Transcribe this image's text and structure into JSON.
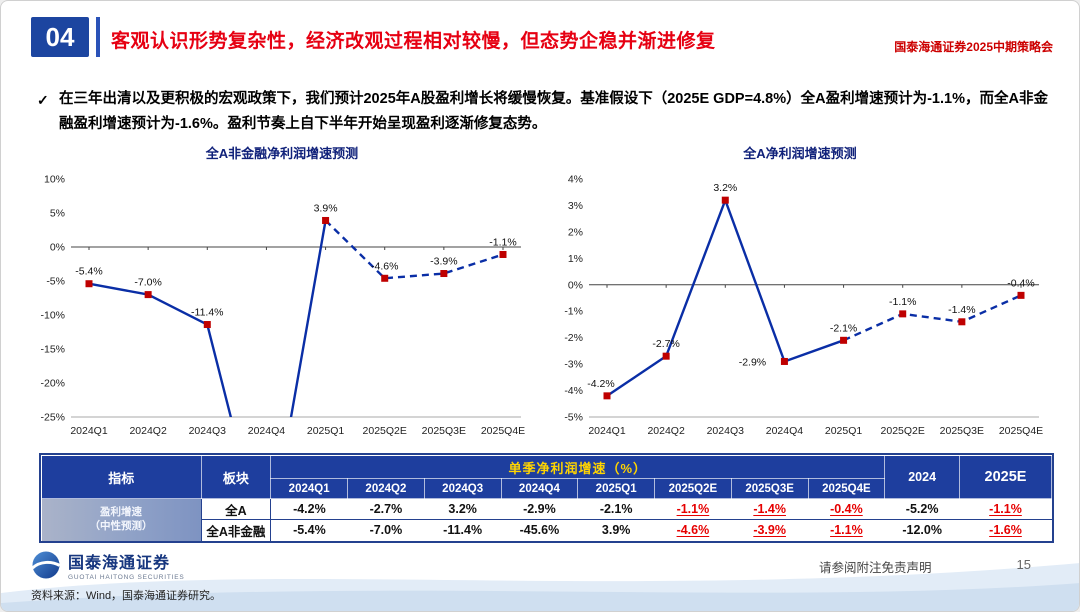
{
  "slide": {
    "badge": "04",
    "title": "客观认识形势复杂性，经济改观过程相对较慢，但态势企稳并渐进修复",
    "event": "国泰海通证券2025中期策略会"
  },
  "summary": {
    "bullet": "✓",
    "text": "在三年出清以及更积极的宏观政策下，我们预计2025年A股盈利增长将缓慢恢复。基准假设下（2025E GDP=4.8%）全A盈利增速预计为-1.1%，而全A非金融盈利增速预计为-1.6%。盈利节奏上自下半年开始呈现盈利逐渐修复态势。"
  },
  "chart_data": [
    {
      "type": "line",
      "title": "全A非金融净利润增速预测",
      "categories": [
        "2024Q1",
        "2024Q2",
        "2024Q3",
        "2024Q4",
        "2025Q1",
        "2025Q2E",
        "2025Q3E",
        "2025Q4E"
      ],
      "values": [
        -5.4,
        -7.0,
        -11.4,
        -45.6,
        3.9,
        -4.6,
        -3.9,
        -1.1
      ],
      "point_labels": [
        "-5.4%",
        "-7.0%",
        "-11.4%",
        null,
        "3.9%",
        "-4.6%",
        "-3.9%",
        "-1.1%"
      ],
      "ylim": [
        -25,
        10
      ],
      "ytick_step": 5,
      "solid_until_index": 4,
      "forecast_style": "dashed",
      "line_color": "#0a2ea6",
      "marker_color": "#bf0000",
      "xlabel": "",
      "ylabel": "",
      "grid": false,
      "legend": "none"
    },
    {
      "type": "line",
      "title": "全A净利润增速预测",
      "categories": [
        "2024Q1",
        "2024Q2",
        "2024Q3",
        "2024Q4",
        "2025Q1",
        "2025Q2E",
        "2025Q3E",
        "2025Q4E"
      ],
      "values": [
        -4.2,
        -2.7,
        3.2,
        -2.9,
        -2.1,
        -1.1,
        -1.4,
        -0.4
      ],
      "point_labels": [
        "-4.2%",
        "-2.7%",
        "3.2%",
        "-2.9%",
        "-2.1%",
        "-1.1%",
        "-1.4%",
        "-0.4%"
      ],
      "label_dx": [
        -6,
        0,
        0,
        -32,
        0,
        0,
        0,
        0
      ],
      "label_dy": [
        0,
        0,
        0,
        13,
        0,
        0,
        0,
        0
      ],
      "ylim": [
        -5,
        4
      ],
      "ytick_step": 1,
      "solid_until_index": 4,
      "forecast_style": "dashed",
      "line_color": "#0a2ea6",
      "marker_color": "#bf0000",
      "xlabel": "",
      "ylabel": "",
      "grid": false,
      "legend": "none"
    }
  ],
  "table": {
    "header": {
      "col_indicator": "指标",
      "col_sector": "板块",
      "col_quarterly": "单季净利润增速（%）",
      "quarters": [
        "2024Q1",
        "2024Q2",
        "2024Q3",
        "2024Q4",
        "2025Q1",
        "2025Q2E",
        "2025Q3E",
        "2025Q4E"
      ],
      "col_2024": "2024",
      "col_2025e": "2025E"
    },
    "indicator": {
      "line1": "盈利增速",
      "line2": "（中性预测）"
    },
    "rows": [
      {
        "sector": "全A",
        "values": [
          "-4.2%",
          "-2.7%",
          "3.2%",
          "-2.9%",
          "-2.1%",
          "-1.1%",
          "-1.4%",
          "-0.4%"
        ],
        "y2024": "-5.2%",
        "y2025e": "-1.1%"
      },
      {
        "sector": "全A非金融",
        "values": [
          "-5.4%",
          "-7.0%",
          "-11.4%",
          "-45.6%",
          "3.9%",
          "-4.6%",
          "-3.9%",
          "-1.1%"
        ],
        "y2024": "-12.0%",
        "y2025e": "-1.6%"
      }
    ]
  },
  "footer": {
    "logo_cn": "国泰海通证券",
    "logo_en": "GUOTAI HAITONG SECURITIES",
    "disclaimer": "请参阅附注免责声明",
    "page": "15",
    "source": "资料来源：Wind，国泰海通证券研究。"
  }
}
